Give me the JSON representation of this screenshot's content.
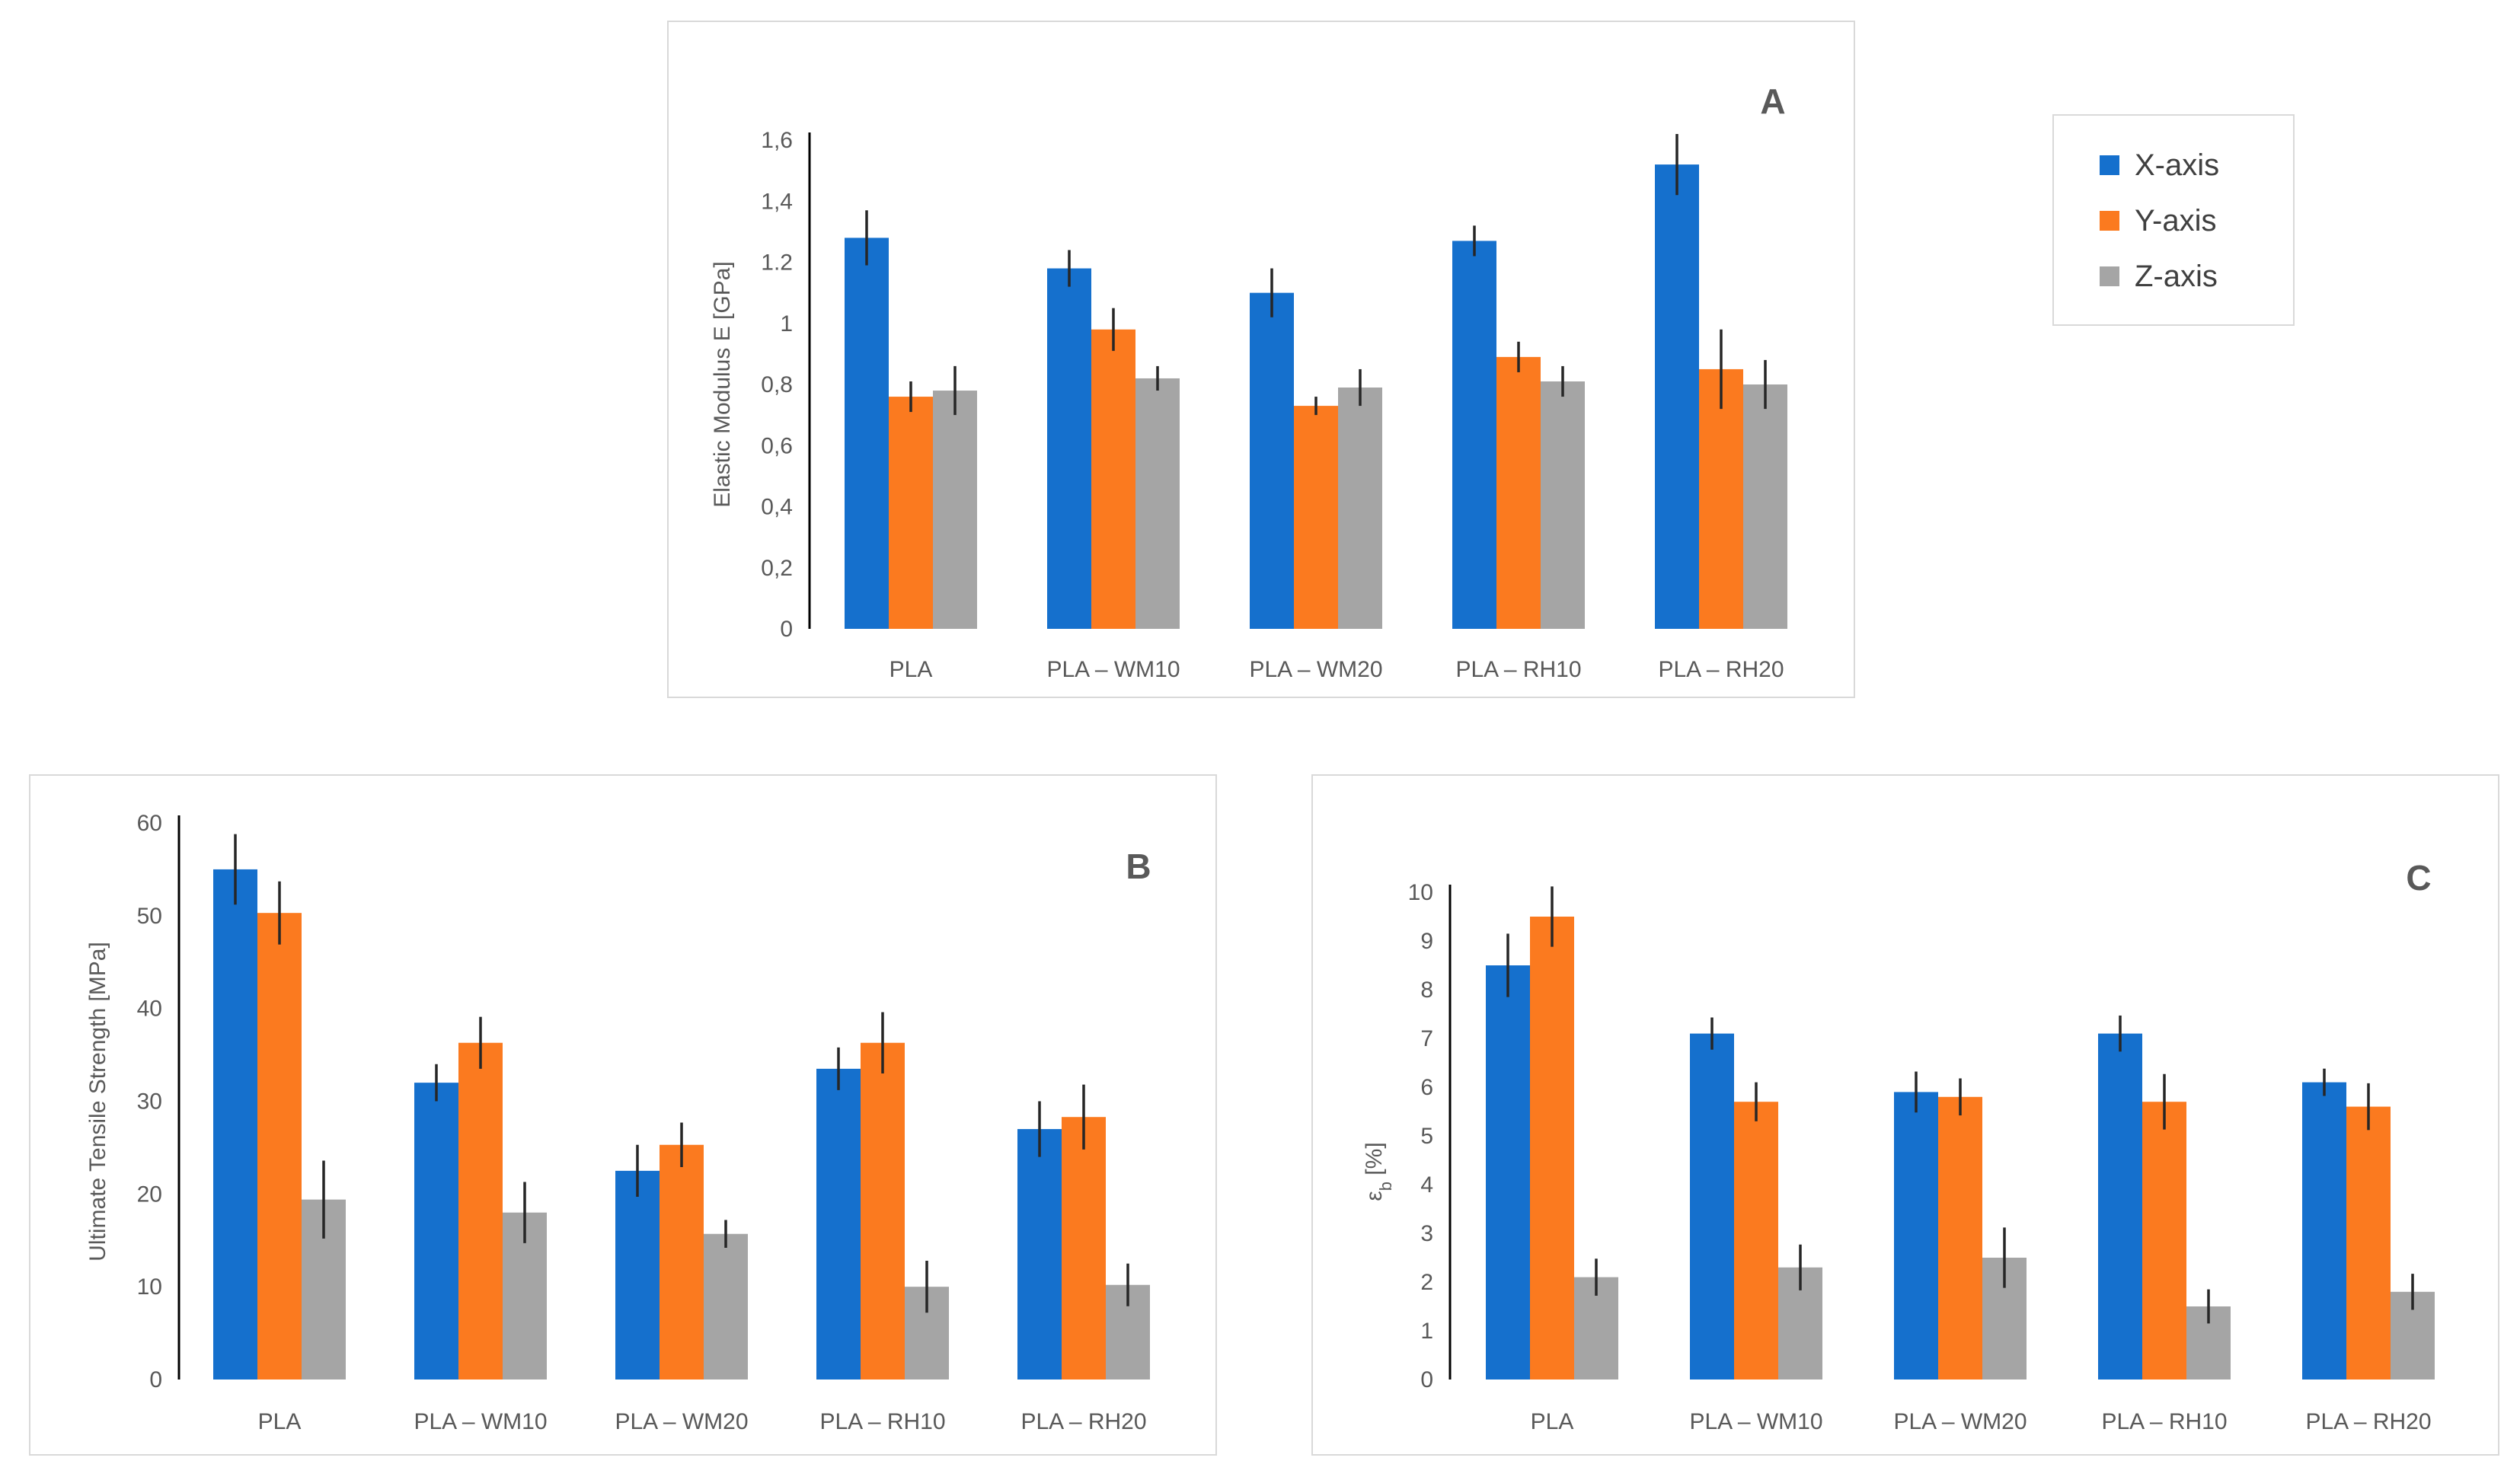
{
  "colors": {
    "x": "#1570CD",
    "y": "#FB7A1F",
    "z": "#A5A5A5",
    "axis": "#000000",
    "error": "#262626"
  },
  "legend": [
    {
      "name": "X-axis",
      "color": "#1570CD"
    },
    {
      "name": "Y-axis",
      "color": "#FB7A1F"
    },
    {
      "name": "Z-axis",
      "color": "#A5A5A5"
    }
  ],
  "chart_data": [
    {
      "panel": "A",
      "type": "bar",
      "ylabel": "Elastic Modulus E [GPa]",
      "categories": [
        "PLA",
        "PLA – WM10",
        "PLA – WM20",
        "PLA – RH10",
        "PLA – RH20"
      ],
      "ylim": [
        0,
        1.6
      ],
      "yticks": [
        "0",
        "0,2",
        "0,4",
        "0,6",
        "0,8",
        "1",
        "1.2",
        "1,4",
        "1,6"
      ],
      "series": [
        {
          "name": "X-axis",
          "values": [
            1.28,
            1.18,
            1.1,
            1.27,
            1.52
          ],
          "errors": [
            0.09,
            0.06,
            0.08,
            0.05,
            0.1
          ]
        },
        {
          "name": "Y-axis",
          "values": [
            0.76,
            0.98,
            0.73,
            0.89,
            0.85
          ],
          "errors": [
            0.05,
            0.07,
            0.03,
            0.05,
            0.13
          ]
        },
        {
          "name": "Z-axis",
          "values": [
            0.78,
            0.82,
            0.79,
            0.81,
            0.8
          ],
          "errors": [
            0.08,
            0.04,
            0.06,
            0.05,
            0.08
          ]
        }
      ]
    },
    {
      "panel": "B",
      "type": "bar",
      "ylabel": "Ultimate Tensile Strength [MPa]",
      "categories": [
        "PLA",
        "PLA – WM10",
        "PLA – WM20",
        "PLA – RH10",
        "PLA – RH20"
      ],
      "ylim": [
        0,
        60
      ],
      "yticks": [
        "0",
        "10",
        "20",
        "30",
        "40",
        "50",
        "60"
      ],
      "series": [
        {
          "name": "X-axis",
          "values": [
            55.0,
            32.0,
            22.5,
            33.5,
            27.0
          ],
          "errors": [
            3.8,
            2.0,
            2.8,
            2.3,
            3.0
          ]
        },
        {
          "name": "Y-axis",
          "values": [
            50.3,
            36.3,
            25.3,
            36.3,
            28.3
          ],
          "errors": [
            3.4,
            2.8,
            2.4,
            3.3,
            3.5
          ]
        },
        {
          "name": "Z-axis",
          "values": [
            19.4,
            18.0,
            15.7,
            10.0,
            10.2
          ],
          "errors": [
            4.2,
            3.3,
            1.5,
            2.8,
            2.3
          ]
        }
      ]
    },
    {
      "panel": "C",
      "type": "bar",
      "ylabel": "ε_b [%]",
      "categories": [
        "PLA",
        "PLA – WM10",
        "PLA – WM20",
        "PLA – RH10",
        "PLA – RH20"
      ],
      "ylim": [
        0,
        10
      ],
      "yticks": [
        "0",
        "1",
        "2",
        "3",
        "4",
        "5",
        "6",
        "7",
        "8",
        "9",
        "10"
      ],
      "series": [
        {
          "name": "X-axis",
          "values": [
            8.5,
            7.1,
            5.9,
            7.1,
            6.1
          ],
          "errors": [
            0.65,
            0.33,
            0.42,
            0.37,
            0.28
          ]
        },
        {
          "name": "Y-axis",
          "values": [
            9.5,
            5.7,
            5.8,
            5.7,
            5.6
          ],
          "errors": [
            0.62,
            0.4,
            0.38,
            0.57,
            0.48
          ]
        },
        {
          "name": "Z-axis",
          "values": [
            2.1,
            2.3,
            2.5,
            1.5,
            1.8
          ],
          "errors": [
            0.38,
            0.47,
            0.62,
            0.35,
            0.37
          ]
        }
      ]
    }
  ]
}
